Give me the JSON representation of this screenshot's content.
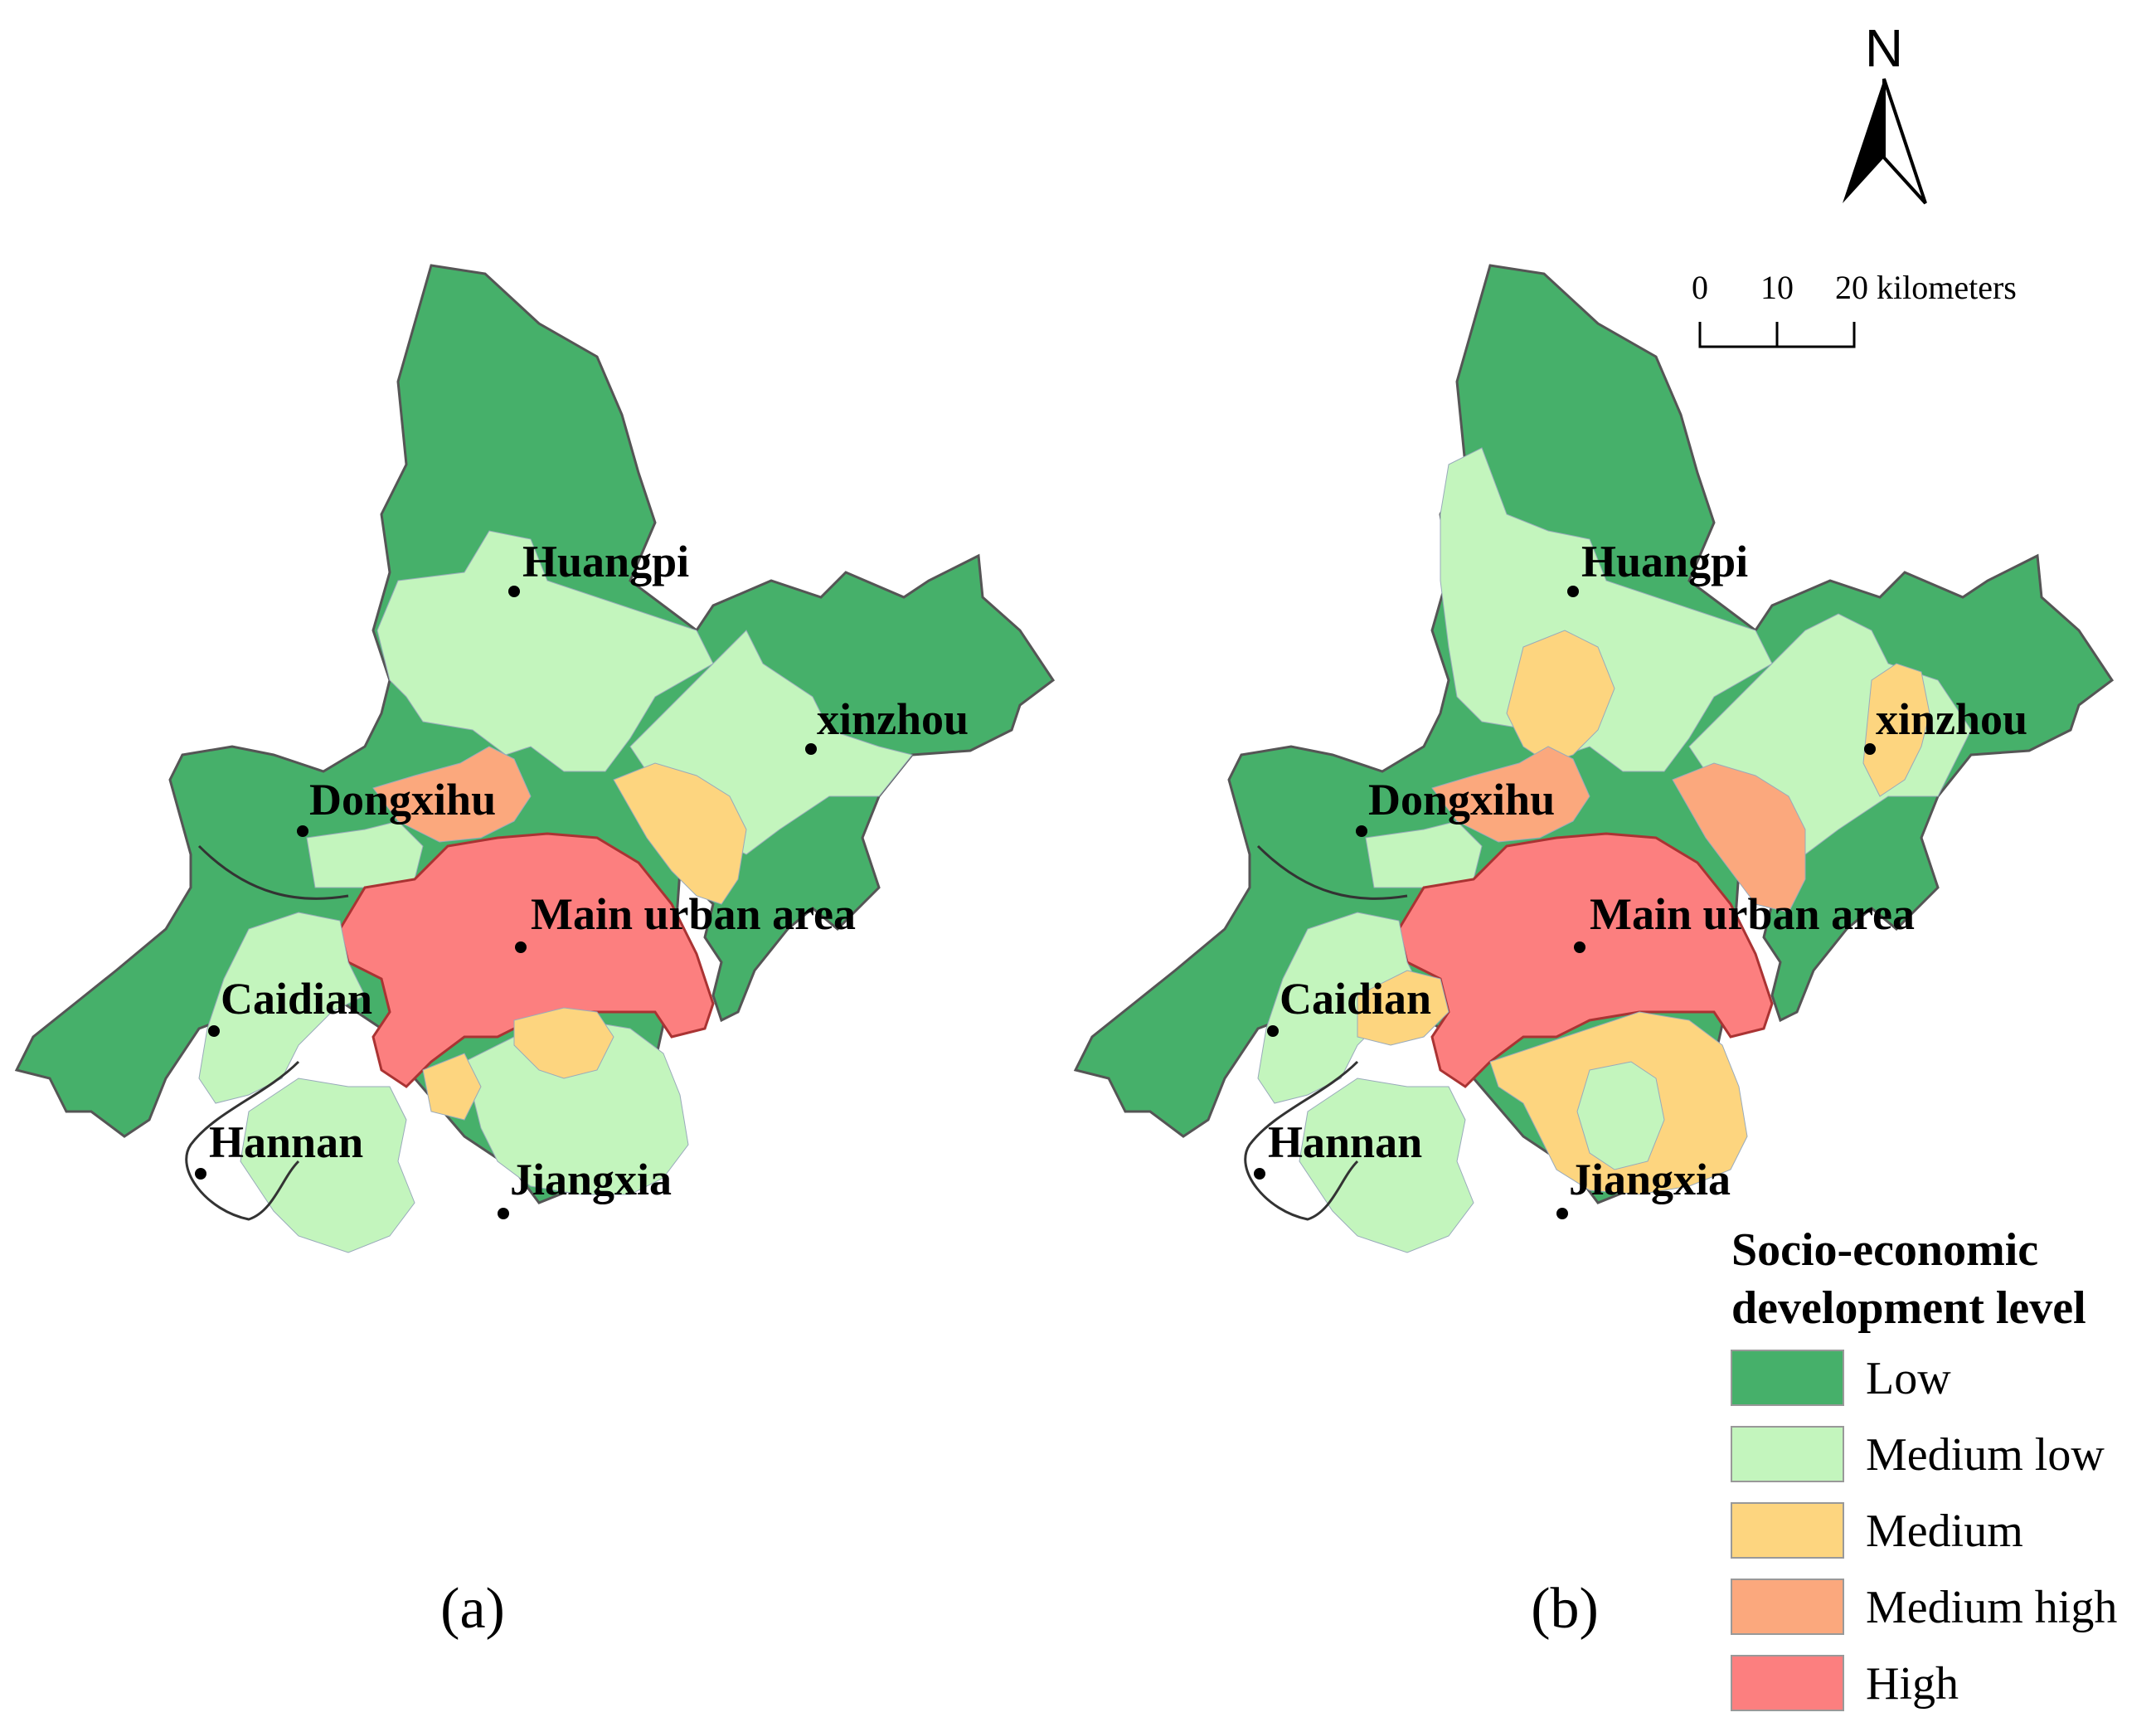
{
  "panels": [
    {
      "caption": "(a)",
      "labels": {
        "huangpi": "Huangpi",
        "xinzhou": "xinzhou",
        "dongxihu": "Dongxihu",
        "main": "Main urban area",
        "caidian": "Caidian",
        "hannan": "Hannan",
        "jiangxia": "Jiangxia"
      },
      "zone_levels": {
        "north_upper": "Low",
        "huangpi_center": "Medium low",
        "huangpi_west": "Low",
        "xinzhou_west": "Medium low",
        "xinzhou_east": "Low",
        "xinzhou_south": "Medium",
        "dongxihu": "Medium high",
        "main_urban": "High",
        "caidian_center": "Medium low",
        "hannan": "Medium low",
        "jiangxia_north": "Medium low",
        "jiangxia_patch": "Medium",
        "southwest": "Low"
      }
    },
    {
      "caption": "(b)",
      "labels": {
        "huangpi": "Huangpi",
        "xinzhou": "xinzhou",
        "dongxihu": "Dongxihu",
        "main": "Main urban area",
        "caidian": "Caidian",
        "hannan": "Hannan",
        "jiangxia": "Jiangxia"
      },
      "zone_levels": {
        "north_upper": "Low",
        "huangpi_center": "Medium low",
        "huangpi_medium": "Medium",
        "huangpi_west": "Low",
        "xinzhou_west": "Medium low",
        "xinzhou_east": "Low",
        "xinzhou_medium": "Medium",
        "xinzhou_south": "Medium high",
        "dongxihu": "Medium high",
        "main_urban": "High",
        "caidian_center": "Medium low",
        "caidian_medium": "Medium",
        "hannan": "Medium low",
        "jiangxia_north": "Medium",
        "jiangxia_center": "Medium low",
        "southwest": "Low"
      }
    }
  ],
  "north_arrow": {
    "label": "N"
  },
  "scale_bar": {
    "ticks": [
      "0",
      "10",
      "20 kilometers"
    ]
  },
  "legend": {
    "title_line1": "Socio-economic",
    "title_line2": "development level",
    "items": [
      {
        "label": "Low",
        "color": "#46b06a"
      },
      {
        "label": "Medium low",
        "color": "#c3f5bd"
      },
      {
        "label": "Medium",
        "color": "#fdd57f"
      },
      {
        "label": "Medium high",
        "color": "#fba87d"
      },
      {
        "label": "High",
        "color": "#fc7f7f"
      }
    ]
  }
}
